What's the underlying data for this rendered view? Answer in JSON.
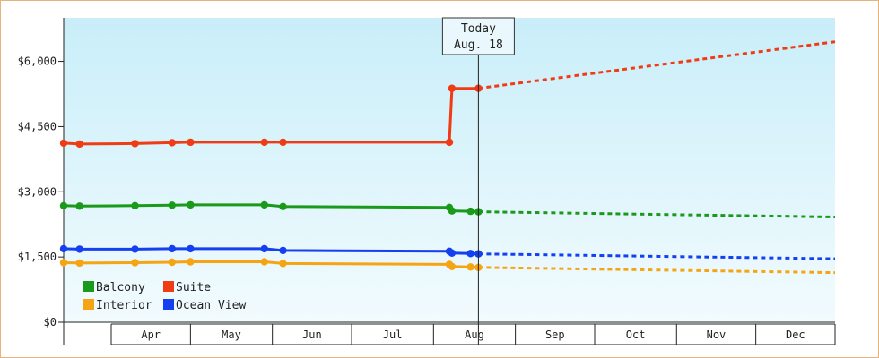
{
  "chart_data": {
    "type": "line",
    "title": "",
    "xlabel": "",
    "ylabel": "",
    "ylim": [
      0,
      7000
    ],
    "y_ticks": [
      {
        "value": 0,
        "label": "$0"
      },
      {
        "value": 1500,
        "label": "$1,500"
      },
      {
        "value": 3000,
        "label": "$3,000"
      },
      {
        "value": 4500,
        "label": "$4,500"
      },
      {
        "value": 6000,
        "label": "$6,000"
      }
    ],
    "x_start": "2024-03-14",
    "x_end": "2024-12-31",
    "months": [
      {
        "label": "Apr",
        "start": "2024-04-01",
        "end": "2024-05-01"
      },
      {
        "label": "May",
        "start": "2024-05-01",
        "end": "2024-06-01"
      },
      {
        "label": "Jun",
        "start": "2024-06-01",
        "end": "2024-07-01"
      },
      {
        "label": "Jul",
        "start": "2024-07-01",
        "end": "2024-08-01"
      },
      {
        "label": "Aug",
        "start": "2024-08-01",
        "end": "2024-09-01"
      },
      {
        "label": "Sep",
        "start": "2024-09-01",
        "end": "2024-10-01"
      },
      {
        "label": "Oct",
        "start": "2024-10-01",
        "end": "2024-11-01"
      },
      {
        "label": "Nov",
        "start": "2024-11-01",
        "end": "2024-12-01"
      },
      {
        "label": "Dec",
        "start": "2024-12-01",
        "end": "2025-01-01"
      }
    ],
    "today": {
      "date": "2024-08-18",
      "line1": "Today",
      "line2": "Aug. 18"
    },
    "grid": false,
    "legend_position": "bottom-left",
    "series": [
      {
        "name": "Balcony",
        "color": "#1a9a1a",
        "historical": [
          [
            "2024-03-14",
            2680
          ],
          [
            "2024-03-20",
            2670
          ],
          [
            "2024-04-10",
            2680
          ],
          [
            "2024-04-24",
            2690
          ],
          [
            "2024-05-01",
            2700
          ],
          [
            "2024-05-29",
            2700
          ],
          [
            "2024-06-05",
            2660
          ],
          [
            "2024-08-07",
            2640
          ],
          [
            "2024-08-08",
            2560
          ],
          [
            "2024-08-15",
            2550
          ],
          [
            "2024-08-18",
            2540
          ]
        ],
        "forecast": [
          [
            "2024-08-18",
            2540
          ],
          [
            "2024-12-31",
            2420
          ]
        ]
      },
      {
        "name": "Suite",
        "color": "#f03c14",
        "historical": [
          [
            "2024-03-14",
            4120
          ],
          [
            "2024-03-20",
            4100
          ],
          [
            "2024-04-10",
            4110
          ],
          [
            "2024-04-24",
            4130
          ],
          [
            "2024-05-01",
            4140
          ],
          [
            "2024-05-29",
            4140
          ],
          [
            "2024-06-05",
            4140
          ],
          [
            "2024-08-07",
            4140
          ],
          [
            "2024-08-08",
            5380
          ],
          [
            "2024-08-18",
            5380
          ]
        ],
        "forecast": [
          [
            "2024-08-18",
            5380
          ],
          [
            "2024-12-31",
            6450
          ]
        ]
      },
      {
        "name": "Interior",
        "color": "#f5a512",
        "historical": [
          [
            "2024-03-14",
            1370
          ],
          [
            "2024-03-20",
            1360
          ],
          [
            "2024-04-10",
            1370
          ],
          [
            "2024-04-24",
            1380
          ],
          [
            "2024-05-01",
            1390
          ],
          [
            "2024-05-29",
            1390
          ],
          [
            "2024-06-05",
            1350
          ],
          [
            "2024-08-07",
            1330
          ],
          [
            "2024-08-08",
            1280
          ],
          [
            "2024-08-15",
            1270
          ],
          [
            "2024-08-18",
            1260
          ]
        ],
        "forecast": [
          [
            "2024-08-18",
            1260
          ],
          [
            "2024-12-31",
            1140
          ]
        ]
      },
      {
        "name": "Ocean View",
        "color": "#1440f0",
        "historical": [
          [
            "2024-03-14",
            1690
          ],
          [
            "2024-03-20",
            1680
          ],
          [
            "2024-04-10",
            1680
          ],
          [
            "2024-04-24",
            1690
          ],
          [
            "2024-05-01",
            1690
          ],
          [
            "2024-05-29",
            1690
          ],
          [
            "2024-06-05",
            1650
          ],
          [
            "2024-08-07",
            1630
          ],
          [
            "2024-08-08",
            1590
          ],
          [
            "2024-08-15",
            1580
          ],
          [
            "2024-08-18",
            1570
          ]
        ],
        "forecast": [
          [
            "2024-08-18",
            1570
          ],
          [
            "2024-12-31",
            1460
          ]
        ]
      }
    ],
    "legend": [
      {
        "name": "Balcony",
        "color": "#1a9a1a"
      },
      {
        "name": "Suite",
        "color": "#f03c14"
      },
      {
        "name": "Interior",
        "color": "#f5a512"
      },
      {
        "name": "Ocean View",
        "color": "#1440f0"
      }
    ]
  }
}
